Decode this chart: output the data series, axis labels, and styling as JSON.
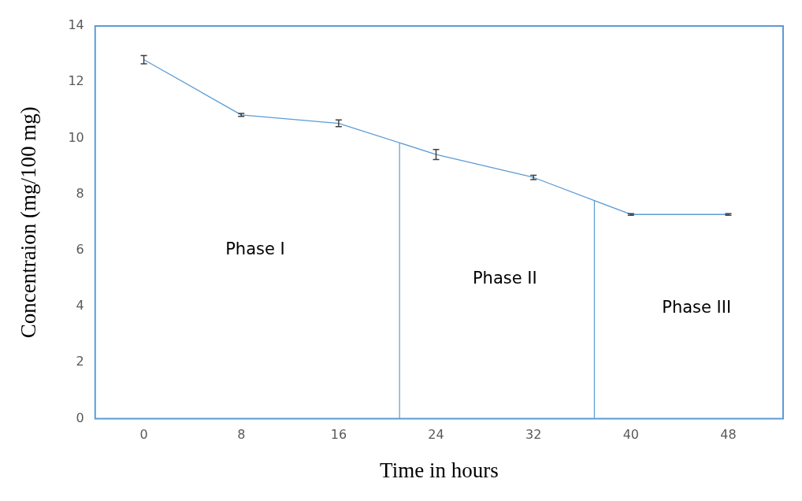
{
  "chart_data": {
    "type": "line",
    "xlabel": "Time in hours",
    "ylabel": "Concentraion (mg/100 mg)",
    "x": [
      0,
      8,
      16,
      24,
      32,
      40,
      48
    ],
    "series": [
      {
        "color": "#5b9bd5",
        "values": [
          12.8,
          10.83,
          10.53,
          9.42,
          8.6,
          7.28,
          7.28
        ],
        "errors": [
          0.15,
          0.05,
          0.12,
          0.18,
          0.08,
          0.03,
          0.03
        ]
      }
    ],
    "xlim": [
      -4,
      52.5
    ],
    "xticks": [
      0,
      8,
      16,
      24,
      32,
      40,
      48
    ],
    "ylim": [
      0,
      14
    ],
    "yticks": [
      0,
      2,
      4,
      6,
      8,
      10,
      12,
      14
    ],
    "grid": false,
    "legend": false,
    "line_style": "solid",
    "ref_lines": [
      {
        "axis": "x",
        "value": 21,
        "color": "#5b9bd5"
      },
      {
        "axis": "x",
        "value": 37,
        "color": "#5b9bd5"
      }
    ],
    "annotations": [
      "Phase I",
      "Phase II",
      "Phase III"
    ]
  }
}
